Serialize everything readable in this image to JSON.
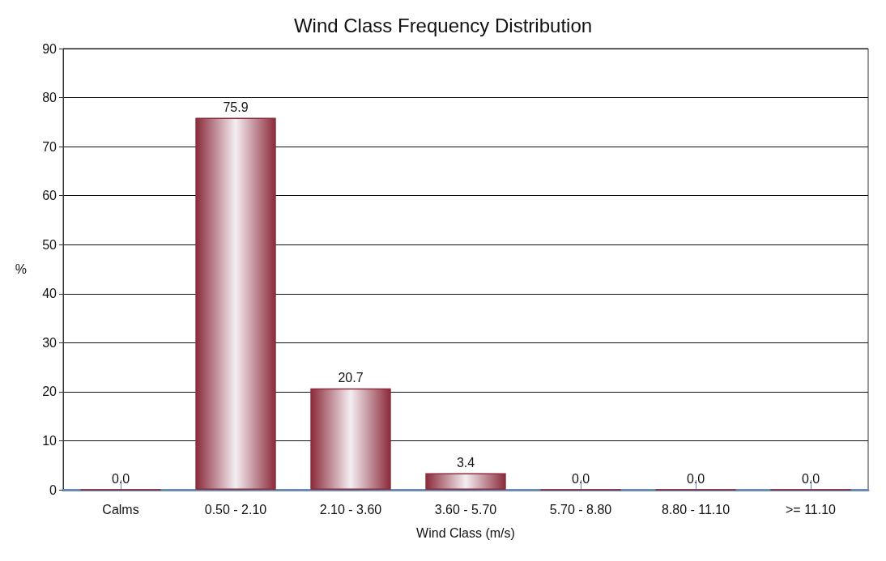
{
  "chart_data": {
    "type": "bar",
    "title": "Wind Class Frequency Distribution",
    "xlabel": "Wind Class (m/s)",
    "ylabel": "%",
    "categories": [
      "Calms",
      "0.50 - 2.10",
      "2.10 - 3.60",
      "3.60 - 5.70",
      "5.70 - 8.80",
      "8.80 - 11.10",
      ">= 11.10"
    ],
    "values": [
      0.0,
      75.9,
      20.7,
      3.4,
      0.0,
      0.0,
      0.0
    ],
    "value_labels": [
      "0.0",
      "75.9",
      "20.7",
      "3.4",
      "0.0",
      "0.0",
      "0.0"
    ],
    "color": "#8b2b3b",
    "ylim": [
      0,
      90
    ],
    "yticks": [
      0,
      10,
      20,
      30,
      40,
      50,
      60,
      70,
      80,
      90
    ],
    "grid": "y"
  }
}
